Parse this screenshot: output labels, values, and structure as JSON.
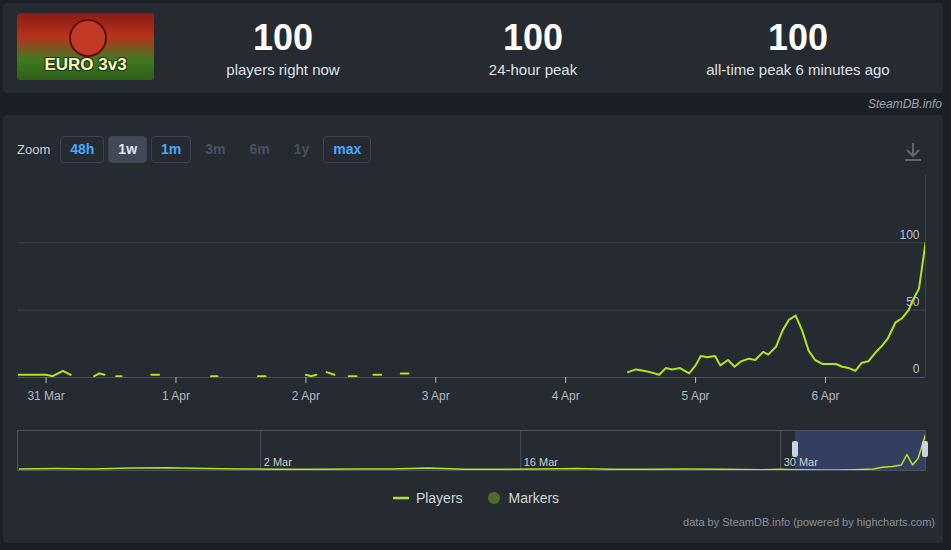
{
  "header": {
    "logo_text": "EURO 3v3",
    "stats": [
      {
        "value": 100,
        "label": "players right now"
      },
      {
        "value": 100,
        "label": "24-hour peak"
      },
      {
        "value": 100,
        "label": "all-time peak 6 minutes ago"
      }
    ]
  },
  "source": "SteamDB.info",
  "zoom": {
    "label": "Zoom",
    "buttons": [
      "48h",
      "1w",
      "1m",
      "3m",
      "6m",
      "1y",
      "max"
    ],
    "selected": "1w",
    "disabled": [
      "3m",
      "6m",
      "1y"
    ]
  },
  "credit": "data by SteamDB.info (powered by highcharts.com)",
  "chart_data": [
    {
      "type": "line",
      "x": [
        -0.21,
        -0.12,
        0,
        0.05,
        0.13,
        0.19,
        0.27,
        0.37,
        0.41,
        0.45,
        0.48,
        0.54,
        0.58,
        0.62,
        0.81,
        0.87,
        0.92,
        1.27,
        1.32,
        1.38,
        1.63,
        1.69,
        1.75,
        2.0,
        2.04,
        2.08,
        2.13,
        2.16,
        2.22,
        2.27,
        2.33,
        2.39,
        2.44,
        2.52,
        2.58,
        2.64,
        2.73,
        2.79,
        2.84,
        4.48,
        4.54,
        4.6,
        4.65,
        4.72,
        4.77,
        4.82,
        4.88,
        4.95,
        5.0,
        5.04,
        5.09,
        5.15,
        5.19,
        5.25,
        5.3,
        5.35,
        5.41,
        5.46,
        5.52,
        5.56,
        5.62,
        5.67,
        5.72,
        5.77,
        5.82,
        5.87,
        5.92,
        5.98,
        6.02,
        6.08,
        6.13,
        6.18,
        6.23,
        6.28,
        6.33,
        6.38,
        6.44,
        6.48,
        6.54,
        6.59,
        6.64,
        6.67,
        6.72,
        6.77
      ],
      "series": [
        {
          "name": "Players",
          "color": "#b2e51d",
          "type": "line",
          "values": [
            2,
            2,
            2,
            1,
            5,
            2,
            null,
            1,
            3,
            2,
            null,
            1,
            1,
            null,
            2,
            2,
            null,
            1,
            1,
            null,
            1,
            1,
            null,
            2,
            1,
            2,
            null,
            4,
            2,
            null,
            1,
            1,
            null,
            2,
            2,
            null,
            3,
            3,
            null,
            4,
            6,
            5,
            4,
            2,
            7,
            6,
            7,
            3,
            9,
            16,
            15,
            16,
            9,
            13,
            8,
            12,
            14,
            13,
            19,
            17,
            23,
            35,
            43,
            46,
            35,
            20,
            13,
            10,
            10,
            10,
            8,
            7,
            5,
            11,
            12,
            18,
            24,
            29,
            41,
            44,
            50,
            57,
            66,
            100
          ]
        },
        {
          "name": "Markers",
          "color": "#4f6b2e",
          "type": "scatter",
          "values": [
            null,
            null,
            null,
            null,
            null,
            null,
            null,
            null,
            null,
            null,
            null,
            null,
            null,
            null,
            null,
            null,
            null,
            null,
            null,
            null,
            null,
            null,
            null,
            null,
            null,
            null,
            null,
            null,
            null,
            null,
            null,
            null,
            null,
            null,
            null,
            null,
            null,
            null,
            null,
            null,
            null,
            null,
            null,
            null,
            null,
            null,
            null,
            null,
            null,
            null,
            null,
            null,
            null,
            null,
            null,
            null,
            null,
            null,
            null,
            null,
            null,
            null,
            null,
            null,
            null,
            null,
            null,
            null,
            null,
            null,
            null,
            null,
            null,
            null,
            null,
            null,
            null,
            null,
            null,
            null,
            null,
            null,
            null,
            null
          ]
        }
      ],
      "xlim": [
        -0.22,
        6.77
      ],
      "xticks": [
        {
          "value": 0,
          "label": "31 Mar"
        },
        {
          "value": 1,
          "label": "1 Apr"
        },
        {
          "value": 2,
          "label": "2 Apr"
        },
        {
          "value": 3,
          "label": "3 Apr"
        },
        {
          "value": 4,
          "label": "4 Apr"
        },
        {
          "value": 5,
          "label": "5 Apr"
        },
        {
          "value": 6,
          "label": "6 Apr"
        }
      ],
      "ylim": [
        0,
        150
      ],
      "yticks": [
        0,
        50,
        100
      ],
      "grid": true,
      "legend": "bottom"
    },
    {
      "type": "line",
      "x": [
        -13,
        -11,
        -9,
        -7,
        -5,
        -3,
        -1,
        1,
        3,
        5,
        7,
        9,
        11,
        13,
        15,
        17,
        19,
        21,
        23,
        25,
        27,
        28,
        29,
        30,
        31,
        32,
        33,
        33.5,
        34,
        34.5,
        34.8,
        35.1,
        35.4,
        35.8
      ],
      "series": [
        {
          "name": "Players",
          "color": "#b2e51d",
          "values": [
            4,
            5,
            4,
            6,
            7,
            5,
            4,
            3,
            3,
            4,
            4,
            6,
            3,
            3,
            4,
            5,
            3,
            3,
            4,
            3,
            2,
            3,
            2,
            1,
            1,
            2,
            4,
            8,
            10,
            14,
            40,
            14,
            30,
            90
          ]
        }
      ],
      "xlim": [
        -13.1,
        35.8
      ],
      "xticks": [
        {
          "value": 0,
          "label": "2 Mar"
        },
        {
          "value": 14,
          "label": "16 Mar"
        },
        {
          "value": 28,
          "label": "30 Mar"
        }
      ],
      "ylim": [
        0,
        100
      ],
      "yticks": [],
      "grid": true,
      "tick_labels": "x"
    }
  ]
}
